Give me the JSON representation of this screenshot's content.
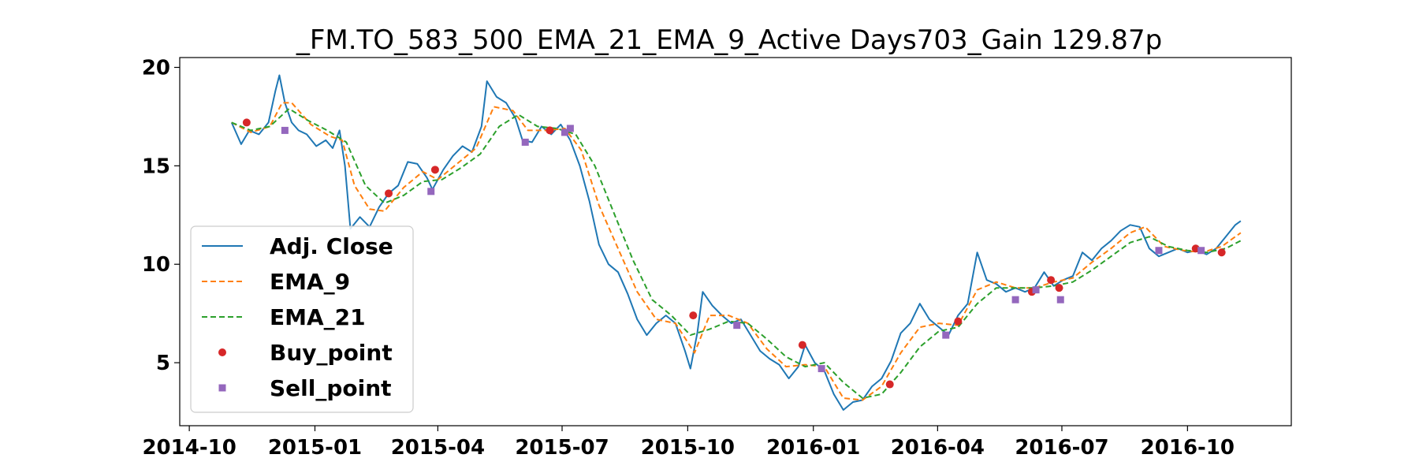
{
  "chart_data": {
    "type": "line",
    "title": "_FM.TO_583_500_EMA_21_EMA_9_Active Days703_Gain 129.87p",
    "xlabel": "",
    "ylabel": "",
    "x_tick_labels": [
      "2014-10",
      "2015-01",
      "2015-04",
      "2015-07",
      "2015-10",
      "2016-01",
      "2016-04",
      "2016-07",
      "2016-10"
    ],
    "y_ticks": [
      5,
      10,
      15,
      20
    ],
    "xlim": [
      "2014-09-24",
      "2016-12-16"
    ],
    "ylim": [
      1.8,
      20.5
    ],
    "grid": false,
    "legend_position": "center-left",
    "series": [
      {
        "name": "Adj. Close",
        "style": "solid",
        "color": "#1f77b4",
        "points": [
          [
            "2014-11-01",
            17.2
          ],
          [
            "2014-11-08",
            16.1
          ],
          [
            "2014-11-14",
            16.8
          ],
          [
            "2014-11-21",
            16.6
          ],
          [
            "2014-11-28",
            17.2
          ],
          [
            "2014-12-03",
            18.8
          ],
          [
            "2014-12-06",
            19.6
          ],
          [
            "2014-12-10",
            18.2
          ],
          [
            "2014-12-15",
            17.2
          ],
          [
            "2014-12-20",
            16.8
          ],
          [
            "2014-12-26",
            16.6
          ],
          [
            "2015-01-02",
            16.0
          ],
          [
            "2015-01-09",
            16.3
          ],
          [
            "2015-01-14",
            15.9
          ],
          [
            "2015-01-19",
            16.8
          ],
          [
            "2015-01-23",
            15.0
          ],
          [
            "2015-01-27",
            11.8
          ],
          [
            "2015-02-03",
            12.4
          ],
          [
            "2015-02-10",
            11.9
          ],
          [
            "2015-02-17",
            12.9
          ],
          [
            "2015-02-24",
            13.6
          ],
          [
            "2015-03-03",
            14.0
          ],
          [
            "2015-03-10",
            15.2
          ],
          [
            "2015-03-17",
            15.1
          ],
          [
            "2015-03-24",
            14.4
          ],
          [
            "2015-03-28",
            13.8
          ],
          [
            "2015-04-05",
            14.8
          ],
          [
            "2015-04-12",
            15.5
          ],
          [
            "2015-04-19",
            16.0
          ],
          [
            "2015-04-26",
            15.7
          ],
          [
            "2015-05-03",
            17.0
          ],
          [
            "2015-05-07",
            19.3
          ],
          [
            "2015-05-14",
            18.5
          ],
          [
            "2015-05-21",
            18.2
          ],
          [
            "2015-05-28",
            17.4
          ],
          [
            "2015-06-02",
            16.3
          ],
          [
            "2015-06-09",
            16.2
          ],
          [
            "2015-06-16",
            17.0
          ],
          [
            "2015-06-23",
            16.6
          ],
          [
            "2015-06-30",
            17.1
          ],
          [
            "2015-07-07",
            16.3
          ],
          [
            "2015-07-14",
            15.0
          ],
          [
            "2015-07-21",
            13.2
          ],
          [
            "2015-07-28",
            11.0
          ],
          [
            "2015-08-04",
            10.0
          ],
          [
            "2015-08-11",
            9.6
          ],
          [
            "2015-08-18",
            8.5
          ],
          [
            "2015-08-25",
            7.2
          ],
          [
            "2015-09-01",
            6.4
          ],
          [
            "2015-09-08",
            7.0
          ],
          [
            "2015-09-15",
            7.4
          ],
          [
            "2015-09-22",
            7.0
          ],
          [
            "2015-09-29",
            5.6
          ],
          [
            "2015-10-03",
            4.7
          ],
          [
            "2015-10-08",
            6.5
          ],
          [
            "2015-10-12",
            8.6
          ],
          [
            "2015-10-19",
            7.9
          ],
          [
            "2015-10-26",
            7.4
          ],
          [
            "2015-11-02",
            7.0
          ],
          [
            "2015-11-09",
            7.2
          ],
          [
            "2015-11-16",
            6.4
          ],
          [
            "2015-11-23",
            5.6
          ],
          [
            "2015-11-30",
            5.2
          ],
          [
            "2015-12-07",
            4.9
          ],
          [
            "2015-12-14",
            4.2
          ],
          [
            "2015-12-21",
            4.8
          ],
          [
            "2015-12-26",
            5.9
          ],
          [
            "2016-01-02",
            5.0
          ],
          [
            "2016-01-09",
            4.6
          ],
          [
            "2016-01-16",
            3.4
          ],
          [
            "2016-01-23",
            2.6
          ],
          [
            "2016-01-30",
            3.0
          ],
          [
            "2016-02-06",
            3.1
          ],
          [
            "2016-02-13",
            3.8
          ],
          [
            "2016-02-20",
            4.2
          ],
          [
            "2016-02-27",
            5.1
          ],
          [
            "2016-03-05",
            6.5
          ],
          [
            "2016-03-12",
            7.0
          ],
          [
            "2016-03-19",
            8.0
          ],
          [
            "2016-03-26",
            7.2
          ],
          [
            "2016-04-02",
            6.8
          ],
          [
            "2016-04-09",
            6.4
          ],
          [
            "2016-04-16",
            7.4
          ],
          [
            "2016-04-23",
            8.0
          ],
          [
            "2016-04-30",
            10.6
          ],
          [
            "2016-05-07",
            9.2
          ],
          [
            "2016-05-14",
            9.0
          ],
          [
            "2016-05-21",
            8.6
          ],
          [
            "2016-05-28",
            8.8
          ],
          [
            "2016-06-04",
            8.6
          ],
          [
            "2016-06-11",
            8.8
          ],
          [
            "2016-06-18",
            9.6
          ],
          [
            "2016-06-25",
            8.9
          ],
          [
            "2016-07-02",
            9.2
          ],
          [
            "2016-07-09",
            9.4
          ],
          [
            "2016-07-16",
            10.6
          ],
          [
            "2016-07-23",
            10.2
          ],
          [
            "2016-07-30",
            10.8
          ],
          [
            "2016-08-06",
            11.2
          ],
          [
            "2016-08-13",
            11.7
          ],
          [
            "2016-08-20",
            12.0
          ],
          [
            "2016-08-27",
            11.9
          ],
          [
            "2016-09-03",
            10.8
          ],
          [
            "2016-09-10",
            10.4
          ],
          [
            "2016-09-17",
            10.6
          ],
          [
            "2016-09-24",
            10.8
          ],
          [
            "2016-10-01",
            10.6
          ],
          [
            "2016-10-08",
            10.7
          ],
          [
            "2016-10-15",
            10.5
          ],
          [
            "2016-10-22",
            10.8
          ],
          [
            "2016-10-29",
            11.4
          ],
          [
            "2016-11-05",
            12.0
          ],
          [
            "2016-11-09",
            12.2
          ]
        ]
      },
      {
        "name": "EMA_9",
        "style": "dashed",
        "color": "#ff7f0e",
        "points": [
          [
            "2014-11-01",
            17.2
          ],
          [
            "2014-11-15",
            16.7
          ],
          [
            "2014-11-29",
            17.0
          ],
          [
            "2014-12-08",
            18.2
          ],
          [
            "2014-12-15",
            18.2
          ],
          [
            "2014-12-29",
            17.1
          ],
          [
            "2015-01-12",
            16.5
          ],
          [
            "2015-01-21",
            16.3
          ],
          [
            "2015-01-30",
            14.0
          ],
          [
            "2015-02-10",
            12.8
          ],
          [
            "2015-02-21",
            12.7
          ],
          [
            "2015-03-07",
            13.9
          ],
          [
            "2015-03-21",
            14.7
          ],
          [
            "2015-04-01",
            14.3
          ],
          [
            "2015-04-15",
            15.1
          ],
          [
            "2015-04-29",
            15.9
          ],
          [
            "2015-05-12",
            18.0
          ],
          [
            "2015-05-26",
            17.8
          ],
          [
            "2015-06-06",
            16.8
          ],
          [
            "2015-06-20",
            16.8
          ],
          [
            "2015-07-03",
            16.9
          ],
          [
            "2015-07-15",
            15.8
          ],
          [
            "2015-07-28",
            13.0
          ],
          [
            "2015-08-11",
            10.8
          ],
          [
            "2015-08-25",
            8.6
          ],
          [
            "2015-09-08",
            7.2
          ],
          [
            "2015-09-22",
            7.0
          ],
          [
            "2015-10-06",
            5.5
          ],
          [
            "2015-10-17",
            7.4
          ],
          [
            "2015-10-31",
            7.4
          ],
          [
            "2015-11-14",
            7.0
          ],
          [
            "2015-11-28",
            5.7
          ],
          [
            "2015-12-12",
            4.8
          ],
          [
            "2015-12-26",
            4.9
          ],
          [
            "2016-01-09",
            4.8
          ],
          [
            "2016-01-23",
            3.2
          ],
          [
            "2016-02-06",
            3.1
          ],
          [
            "2016-02-20",
            3.8
          ],
          [
            "2016-03-05",
            5.5
          ],
          [
            "2016-03-19",
            6.8
          ],
          [
            "2016-04-02",
            7.0
          ],
          [
            "2016-04-16",
            6.9
          ],
          [
            "2016-04-30",
            8.7
          ],
          [
            "2016-05-14",
            9.1
          ],
          [
            "2016-05-28",
            8.8
          ],
          [
            "2016-06-11",
            8.8
          ],
          [
            "2016-06-25",
            9.1
          ],
          [
            "2016-07-09",
            9.3
          ],
          [
            "2016-07-23",
            10.1
          ],
          [
            "2016-08-06",
            10.8
          ],
          [
            "2016-08-20",
            11.6
          ],
          [
            "2016-08-31",
            11.9
          ],
          [
            "2016-09-14",
            10.9
          ],
          [
            "2016-09-28",
            10.7
          ],
          [
            "2016-10-12",
            10.6
          ],
          [
            "2016-10-26",
            10.9
          ],
          [
            "2016-11-09",
            11.6
          ]
        ]
      },
      {
        "name": "EMA_21",
        "style": "dashed",
        "color": "#2ca02c",
        "points": [
          [
            "2014-11-01",
            17.2
          ],
          [
            "2014-11-15",
            16.8
          ],
          [
            "2014-11-29",
            17.0
          ],
          [
            "2014-12-13",
            17.9
          ],
          [
            "2014-12-27",
            17.3
          ],
          [
            "2015-01-10",
            16.8
          ],
          [
            "2015-01-24",
            16.2
          ],
          [
            "2015-02-07",
            14.0
          ],
          [
            "2015-02-21",
            13.1
          ],
          [
            "2015-03-07",
            13.5
          ],
          [
            "2015-03-21",
            14.2
          ],
          [
            "2015-04-04",
            14.3
          ],
          [
            "2015-04-18",
            14.9
          ],
          [
            "2015-05-02",
            15.6
          ],
          [
            "2015-05-16",
            17.0
          ],
          [
            "2015-05-30",
            17.6
          ],
          [
            "2015-06-13",
            17.0
          ],
          [
            "2015-06-27",
            16.9
          ],
          [
            "2015-07-11",
            16.6
          ],
          [
            "2015-07-25",
            15.0
          ],
          [
            "2015-08-08",
            12.6
          ],
          [
            "2015-08-22",
            10.2
          ],
          [
            "2015-09-05",
            8.2
          ],
          [
            "2015-09-19",
            7.4
          ],
          [
            "2015-10-03",
            6.4
          ],
          [
            "2015-10-17",
            6.7
          ],
          [
            "2015-10-31",
            7.1
          ],
          [
            "2015-11-14",
            7.0
          ],
          [
            "2015-11-28",
            6.2
          ],
          [
            "2015-12-12",
            5.3
          ],
          [
            "2015-12-26",
            4.8
          ],
          [
            "2016-01-09",
            5.0
          ],
          [
            "2016-01-23",
            4.0
          ],
          [
            "2016-02-06",
            3.2
          ],
          [
            "2016-02-20",
            3.4
          ],
          [
            "2016-03-05",
            4.5
          ],
          [
            "2016-03-19",
            5.8
          ],
          [
            "2016-04-02",
            6.6
          ],
          [
            "2016-04-16",
            6.8
          ],
          [
            "2016-04-30",
            8.0
          ],
          [
            "2016-05-14",
            8.8
          ],
          [
            "2016-05-28",
            8.8
          ],
          [
            "2016-06-11",
            8.8
          ],
          [
            "2016-06-25",
            8.9
          ],
          [
            "2016-07-09",
            9.1
          ],
          [
            "2016-07-23",
            9.7
          ],
          [
            "2016-08-06",
            10.4
          ],
          [
            "2016-08-20",
            11.1
          ],
          [
            "2016-09-03",
            11.4
          ],
          [
            "2016-09-17",
            10.9
          ],
          [
            "2016-10-01",
            10.7
          ],
          [
            "2016-10-15",
            10.6
          ],
          [
            "2016-10-29",
            10.8
          ],
          [
            "2016-11-09",
            11.2
          ]
        ]
      },
      {
        "name": "Buy_point",
        "style": "marker-circle",
        "color": "#d62728",
        "points": [
          [
            "2014-11-12",
            17.2
          ],
          [
            "2015-02-24",
            13.6
          ],
          [
            "2015-03-30",
            14.8
          ],
          [
            "2015-06-22",
            16.8
          ],
          [
            "2015-10-05",
            7.4
          ],
          [
            "2015-12-24",
            5.9
          ],
          [
            "2016-02-26",
            3.9
          ],
          [
            "2016-04-16",
            7.1
          ],
          [
            "2016-06-09",
            8.6
          ],
          [
            "2016-06-23",
            9.2
          ],
          [
            "2016-06-29",
            8.8
          ],
          [
            "2016-10-07",
            10.8
          ],
          [
            "2016-10-26",
            10.6
          ]
        ]
      },
      {
        "name": "Sell_point",
        "style": "marker-square",
        "color": "#9467bd",
        "points": [
          [
            "2014-12-10",
            16.8
          ],
          [
            "2015-03-27",
            13.7
          ],
          [
            "2015-06-04",
            16.2
          ],
          [
            "2015-07-03",
            16.7
          ],
          [
            "2015-07-07",
            16.9
          ],
          [
            "2015-11-06",
            6.9
          ],
          [
            "2016-01-07",
            4.7
          ],
          [
            "2016-04-07",
            6.4
          ],
          [
            "2016-05-28",
            8.2
          ],
          [
            "2016-06-12",
            8.7
          ],
          [
            "2016-06-30",
            8.2
          ],
          [
            "2016-09-10",
            10.7
          ],
          [
            "2016-10-11",
            10.7
          ]
        ]
      }
    ]
  }
}
